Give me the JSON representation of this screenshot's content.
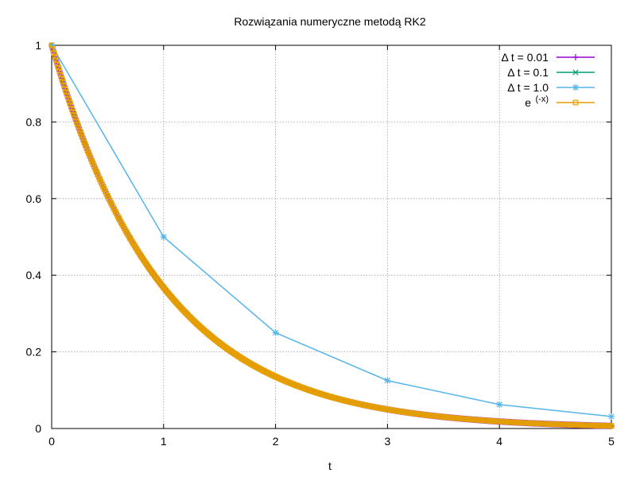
{
  "chart_data": {
    "type": "line",
    "title": "Rozwiązania numeryczne metodą RK2",
    "xlabel": "t",
    "ylabel": "",
    "xlim": [
      0,
      5
    ],
    "ylim": [
      0,
      1
    ],
    "x_ticks": [
      "0",
      "1",
      "2",
      "3",
      "4",
      "5"
    ],
    "y_ticks": [
      "0",
      "0.2",
      "0.4",
      "0.6",
      "0.8",
      "1"
    ],
    "grid": true,
    "legend_position": "top-right",
    "series": [
      {
        "name": "Δ t = 0.01",
        "color": "#9400d3",
        "marker": "plus",
        "function": "exp(-t)",
        "step": 0.01,
        "x_range": [
          0,
          5
        ]
      },
      {
        "name": "Δ t = 0.1",
        "color": "#009e73",
        "marker": "cross",
        "function": "exp(-t)",
        "step": 0.1,
        "x_range": [
          0,
          5
        ]
      },
      {
        "name": "Δ t = 1.0",
        "color": "#56b4e9",
        "marker": "star",
        "x": [
          0,
          1,
          2,
          3,
          4,
          5
        ],
        "y": [
          1,
          0.5,
          0.25,
          0.125,
          0.0625,
          0.03125
        ]
      },
      {
        "name": "e",
        "name_superscript": "(-x)",
        "color": "#e69f00",
        "marker": "square",
        "function": "exp(-t)",
        "step": 0.01,
        "x_range": [
          0,
          5
        ]
      }
    ]
  }
}
